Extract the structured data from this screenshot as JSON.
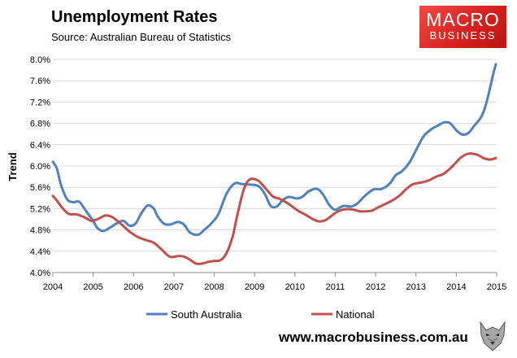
{
  "header": {
    "title": "Unemployment Rates",
    "subtitle": "Source: Australian Bureau of Statistics"
  },
  "logo": {
    "line1": "MACRO",
    "line2": "BUSINESS",
    "color": "#d4201c"
  },
  "footer": {
    "url": "www.macrobusiness.com.au",
    "icon": "wolf-icon"
  },
  "chart_data": {
    "type": "line",
    "title": "Unemployment Rates",
    "subtitle": "Source: Australian Bureau of Statistics",
    "ylabel": "Trend",
    "xlabel": "",
    "xlim": [
      2004,
      2015
    ],
    "ylim": [
      4.0,
      8.0
    ],
    "x_ticks": [
      "2004",
      "2005",
      "2006",
      "2007",
      "2008",
      "2009",
      "2010",
      "2011",
      "2012",
      "2013",
      "2014",
      "2015"
    ],
    "y_ticks": [
      "4.0%",
      "4.4%",
      "4.8%",
      "5.2%",
      "5.6%",
      "6.0%",
      "6.4%",
      "6.8%",
      "7.2%",
      "7.6%",
      "8.0%"
    ],
    "grid": "horizontal",
    "legend_position": "bottom",
    "series": [
      {
        "name": "South Australia",
        "color": "#4f81bd",
        "points": [
          [
            2004.0,
            6.08
          ],
          [
            2004.1,
            5.95
          ],
          [
            2004.2,
            5.65
          ],
          [
            2004.35,
            5.38
          ],
          [
            2004.5,
            5.32
          ],
          [
            2004.65,
            5.33
          ],
          [
            2004.8,
            5.18
          ],
          [
            2005.0,
            4.97
          ],
          [
            2005.1,
            4.84
          ],
          [
            2005.25,
            4.78
          ],
          [
            2005.45,
            4.86
          ],
          [
            2005.6,
            4.93
          ],
          [
            2005.75,
            4.97
          ],
          [
            2005.9,
            4.88
          ],
          [
            2006.05,
            4.92
          ],
          [
            2006.2,
            5.12
          ],
          [
            2006.35,
            5.26
          ],
          [
            2006.5,
            5.2
          ],
          [
            2006.6,
            5.05
          ],
          [
            2006.75,
            4.92
          ],
          [
            2006.9,
            4.9
          ],
          [
            2007.1,
            4.95
          ],
          [
            2007.25,
            4.9
          ],
          [
            2007.4,
            4.75
          ],
          [
            2007.6,
            4.71
          ],
          [
            2007.75,
            4.8
          ],
          [
            2007.9,
            4.9
          ],
          [
            2008.1,
            5.09
          ],
          [
            2008.3,
            5.47
          ],
          [
            2008.5,
            5.67
          ],
          [
            2008.7,
            5.66
          ],
          [
            2008.9,
            5.65
          ],
          [
            2009.1,
            5.62
          ],
          [
            2009.25,
            5.48
          ],
          [
            2009.4,
            5.25
          ],
          [
            2009.55,
            5.24
          ],
          [
            2009.7,
            5.36
          ],
          [
            2009.85,
            5.42
          ],
          [
            2010.05,
            5.39
          ],
          [
            2010.2,
            5.43
          ],
          [
            2010.35,
            5.53
          ],
          [
            2010.55,
            5.57
          ],
          [
            2010.7,
            5.46
          ],
          [
            2010.85,
            5.27
          ],
          [
            2011.0,
            5.18
          ],
          [
            2011.2,
            5.25
          ],
          [
            2011.4,
            5.24
          ],
          [
            2011.55,
            5.3
          ],
          [
            2011.75,
            5.45
          ],
          [
            2011.95,
            5.56
          ],
          [
            2012.15,
            5.57
          ],
          [
            2012.35,
            5.67
          ],
          [
            2012.5,
            5.83
          ],
          [
            2012.65,
            5.9
          ],
          [
            2012.85,
            6.08
          ],
          [
            2013.05,
            6.37
          ],
          [
            2013.2,
            6.57
          ],
          [
            2013.4,
            6.7
          ],
          [
            2013.55,
            6.76
          ],
          [
            2013.7,
            6.82
          ],
          [
            2013.85,
            6.8
          ],
          [
            2014.0,
            6.67
          ],
          [
            2014.15,
            6.59
          ],
          [
            2014.3,
            6.62
          ],
          [
            2014.45,
            6.76
          ],
          [
            2014.6,
            6.9
          ],
          [
            2014.7,
            7.07
          ],
          [
            2014.8,
            7.35
          ],
          [
            2014.9,
            7.68
          ],
          [
            2014.98,
            7.91
          ]
        ]
      },
      {
        "name": "National",
        "color": "#c0504d",
        "points": [
          [
            2004.0,
            5.44
          ],
          [
            2004.1,
            5.35
          ],
          [
            2004.25,
            5.2
          ],
          [
            2004.4,
            5.1
          ],
          [
            2004.6,
            5.09
          ],
          [
            2004.8,
            5.03
          ],
          [
            2004.95,
            4.97
          ],
          [
            2005.1,
            5.0
          ],
          [
            2005.3,
            5.07
          ],
          [
            2005.45,
            5.05
          ],
          [
            2005.6,
            4.97
          ],
          [
            2005.75,
            4.87
          ],
          [
            2005.9,
            4.77
          ],
          [
            2006.1,
            4.67
          ],
          [
            2006.3,
            4.61
          ],
          [
            2006.5,
            4.56
          ],
          [
            2006.7,
            4.43
          ],
          [
            2006.85,
            4.32
          ],
          [
            2006.95,
            4.29
          ],
          [
            2007.1,
            4.31
          ],
          [
            2007.25,
            4.3
          ],
          [
            2007.4,
            4.24
          ],
          [
            2007.55,
            4.17
          ],
          [
            2007.7,
            4.17
          ],
          [
            2007.85,
            4.2
          ],
          [
            2008.0,
            4.22
          ],
          [
            2008.15,
            4.23
          ],
          [
            2008.3,
            4.36
          ],
          [
            2008.45,
            4.66
          ],
          [
            2008.55,
            5.0
          ],
          [
            2008.65,
            5.33
          ],
          [
            2008.75,
            5.6
          ],
          [
            2008.85,
            5.73
          ],
          [
            2008.95,
            5.76
          ],
          [
            2009.1,
            5.72
          ],
          [
            2009.25,
            5.6
          ],
          [
            2009.45,
            5.43
          ],
          [
            2009.6,
            5.39
          ],
          [
            2009.8,
            5.31
          ],
          [
            2009.95,
            5.23
          ],
          [
            2010.1,
            5.15
          ],
          [
            2010.3,
            5.07
          ],
          [
            2010.45,
            5.0
          ],
          [
            2010.6,
            4.96
          ],
          [
            2010.75,
            4.98
          ],
          [
            2010.9,
            5.06
          ],
          [
            2011.05,
            5.14
          ],
          [
            2011.25,
            5.19
          ],
          [
            2011.45,
            5.18
          ],
          [
            2011.6,
            5.15
          ],
          [
            2011.75,
            5.15
          ],
          [
            2011.9,
            5.16
          ],
          [
            2012.05,
            5.22
          ],
          [
            2012.25,
            5.29
          ],
          [
            2012.45,
            5.37
          ],
          [
            2012.6,
            5.45
          ],
          [
            2012.75,
            5.56
          ],
          [
            2012.9,
            5.65
          ],
          [
            2013.05,
            5.68
          ],
          [
            2013.2,
            5.7
          ],
          [
            2013.35,
            5.74
          ],
          [
            2013.5,
            5.8
          ],
          [
            2013.65,
            5.84
          ],
          [
            2013.8,
            5.92
          ],
          [
            2013.95,
            6.03
          ],
          [
            2014.1,
            6.15
          ],
          [
            2014.25,
            6.22
          ],
          [
            2014.4,
            6.23
          ],
          [
            2014.55,
            6.2
          ],
          [
            2014.7,
            6.14
          ],
          [
            2014.85,
            6.12
          ],
          [
            2014.98,
            6.15
          ]
        ]
      }
    ]
  }
}
